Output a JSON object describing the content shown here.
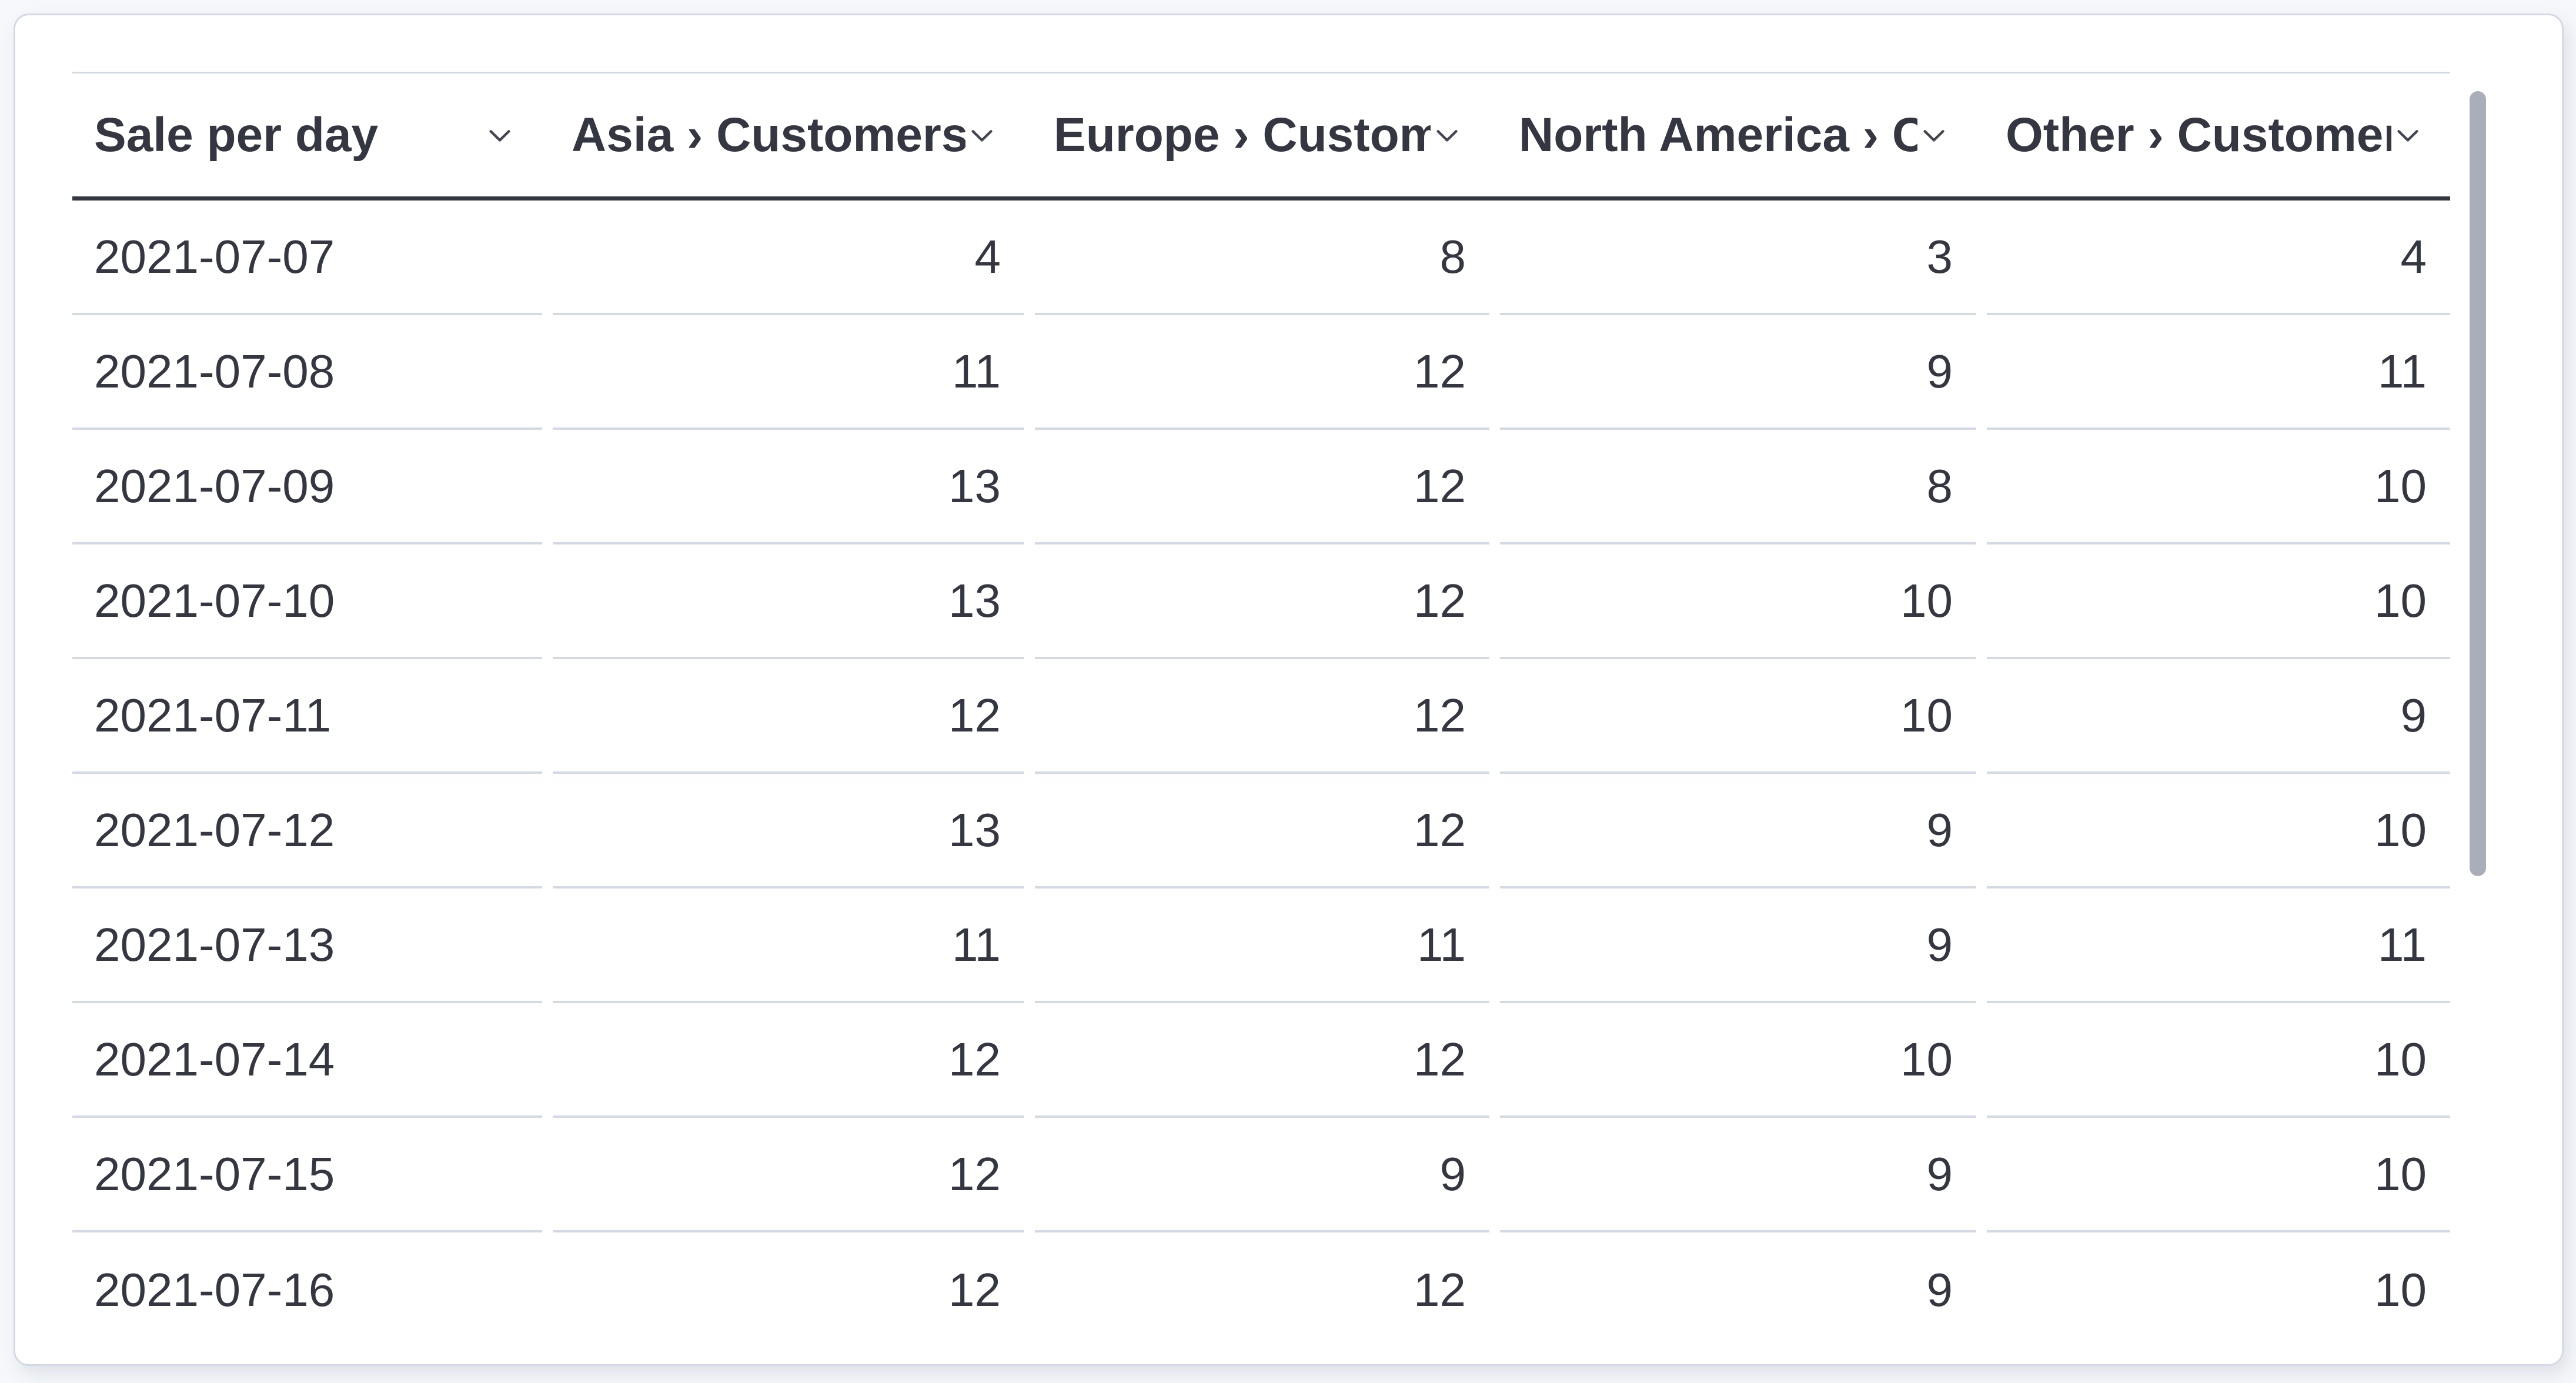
{
  "table": {
    "columns": [
      {
        "label": "Sale per day",
        "align": "left"
      },
      {
        "label": "Asia › Customers",
        "align": "right"
      },
      {
        "label": "Europe › Customers",
        "align": "right"
      },
      {
        "label": "North America › Customers",
        "align": "right"
      },
      {
        "label": "Other › Customers",
        "align": "right"
      }
    ],
    "rows": [
      [
        "2021-07-07",
        "4",
        "8",
        "3",
        "4"
      ],
      [
        "2021-07-08",
        "11",
        "12",
        "9",
        "11"
      ],
      [
        "2021-07-09",
        "13",
        "12",
        "8",
        "10"
      ],
      [
        "2021-07-10",
        "13",
        "12",
        "10",
        "10"
      ],
      [
        "2021-07-11",
        "12",
        "12",
        "10",
        "9"
      ],
      [
        "2021-07-12",
        "13",
        "12",
        "9",
        "10"
      ],
      [
        "2021-07-13",
        "11",
        "11",
        "9",
        "11"
      ],
      [
        "2021-07-14",
        "12",
        "12",
        "10",
        "10"
      ],
      [
        "2021-07-15",
        "12",
        "9",
        "9",
        "10"
      ],
      [
        "2021-07-16",
        "12",
        "12",
        "9",
        "10"
      ]
    ]
  },
  "icons": {
    "header_sort": "chevron-down-icon"
  },
  "scrollbar": {
    "orientation": "vertical",
    "position": "near-top"
  },
  "colors": {
    "text": "#343741",
    "row_border": "#D3DAE6",
    "header_border": "#343741",
    "panel_border": "#D3DAE6",
    "panel_bg": "#FFFFFF",
    "page_bg": "#F6F8FB",
    "scrollbar_thumb": "#A9AEB8"
  }
}
